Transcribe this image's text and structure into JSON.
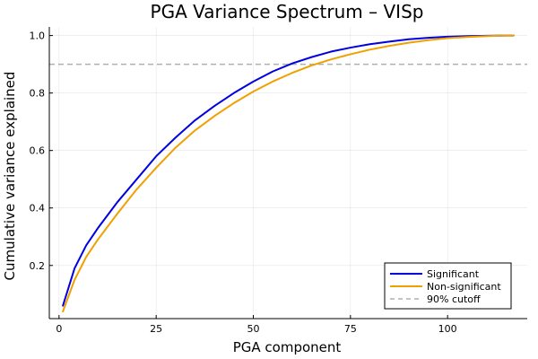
{
  "chart_data": {
    "type": "line",
    "title": "PGA Variance Spectrum – VISp",
    "xlabel": "PGA component",
    "ylabel": "Cumulative variance explained",
    "xlim": [
      -2.5,
      120.5
    ],
    "ylim": [
      0.015,
      1.03
    ],
    "xticks": [
      0,
      25,
      50,
      75,
      100
    ],
    "yticks": [
      0.2,
      0.4,
      0.6,
      0.8,
      1.0
    ],
    "xtick_labels": [
      "0",
      "25",
      "50",
      "75",
      "100"
    ],
    "ytick_labels": [
      "0.2",
      "0.4",
      "0.6",
      "0.8",
      "1.0"
    ],
    "grid": true,
    "legend_position": "bottom-right",
    "series": [
      {
        "name": "Significant",
        "color": "#0000e0",
        "x": [
          1,
          4,
          7,
          10,
          15,
          20,
          25,
          30,
          35,
          40,
          45,
          50,
          55,
          60,
          65,
          70,
          75,
          80,
          85,
          90,
          95,
          100,
          105,
          110,
          115,
          117
        ],
        "y": [
          0.06,
          0.19,
          0.27,
          0.33,
          0.42,
          0.5,
          0.58,
          0.645,
          0.705,
          0.755,
          0.8,
          0.84,
          0.875,
          0.903,
          0.925,
          0.944,
          0.958,
          0.97,
          0.979,
          0.987,
          0.992,
          0.996,
          0.998,
          0.999,
          1.0,
          1.0
        ]
      },
      {
        "name": "Non-significant",
        "color": "#f0a000",
        "x": [
          1,
          4,
          7,
          10,
          15,
          20,
          25,
          30,
          35,
          40,
          45,
          50,
          55,
          60,
          65,
          70,
          75,
          80,
          85,
          90,
          95,
          100,
          105,
          110,
          115,
          117
        ],
        "y": [
          0.04,
          0.15,
          0.23,
          0.29,
          0.38,
          0.465,
          0.54,
          0.61,
          0.67,
          0.72,
          0.765,
          0.805,
          0.84,
          0.87,
          0.896,
          0.917,
          0.935,
          0.951,
          0.964,
          0.975,
          0.984,
          0.991,
          0.995,
          0.998,
          1.0,
          1.0
        ]
      }
    ],
    "reference_line": {
      "name": "90% cutoff",
      "y": 0.9,
      "color": "#b0b0b0",
      "style": "dashed"
    }
  }
}
